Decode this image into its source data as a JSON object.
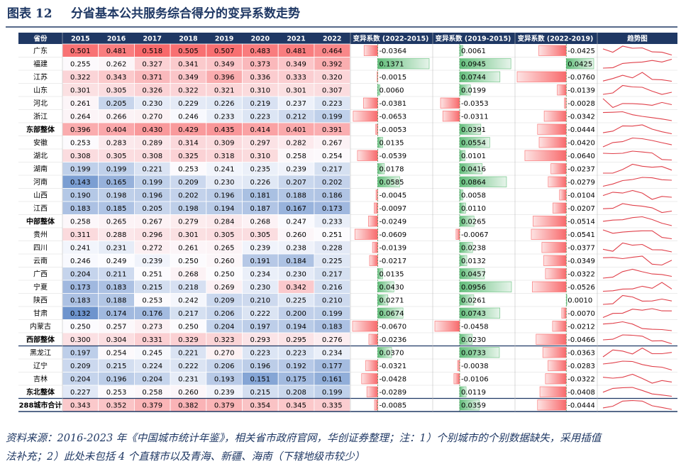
{
  "header": {
    "label": "图表 12",
    "title": "分省基本公共服务综合得分的变异系数走势"
  },
  "table": {
    "columns": [
      "省份",
      "2015",
      "2016",
      "2017",
      "2018",
      "2019",
      "2020",
      "2021",
      "2022",
      "变异系数 (2022-2015)",
      "变异系数 (2019-2015)",
      "变异系数 (2022-2019)",
      "趋势图"
    ],
    "rows": [
      {
        "name": "广东",
        "bold": false,
        "values": [
          "0.501",
          "0.481",
          "0.518",
          "0.505",
          "0.507",
          "0.483",
          "0.481",
          "0.464"
        ],
        "changes": [
          "-0.0364",
          "0.0061",
          "-0.0425"
        ]
      },
      {
        "name": "福建",
        "bold": false,
        "values": [
          "0.255",
          "0.262",
          "0.327",
          "0.341",
          "0.349",
          "0.373",
          "0.349",
          "0.392"
        ],
        "changes": [
          "0.1371",
          "0.0945",
          "0.0425"
        ]
      },
      {
        "name": "江苏",
        "bold": false,
        "values": [
          "0.322",
          "0.343",
          "0.371",
          "0.349",
          "0.396",
          "0.336",
          "0.333",
          "0.320"
        ],
        "changes": [
          "-0.0015",
          "0.0744",
          "-0.0760"
        ]
      },
      {
        "name": "山东",
        "bold": false,
        "values": [
          "0.301",
          "0.305",
          "0.326",
          "0.322",
          "0.321",
          "0.310",
          "0.301",
          "0.307"
        ],
        "changes": [
          "0.0060",
          "0.0199",
          "-0.0139"
        ]
      },
      {
        "name": "河北",
        "bold": false,
        "values": [
          "0.261",
          "0.205",
          "0.230",
          "0.229",
          "0.226",
          "0.219",
          "0.237",
          "0.223"
        ],
        "changes": [
          "-0.0381",
          "-0.0353",
          "-0.0028"
        ]
      },
      {
        "name": "浙江",
        "bold": false,
        "values": [
          "0.264",
          "0.266",
          "0.270",
          "0.246",
          "0.233",
          "0.223",
          "0.212",
          "0.199"
        ],
        "changes": [
          "-0.0653",
          "-0.0311",
          "-0.0342"
        ]
      },
      {
        "name": "东部整体",
        "bold": true,
        "values": [
          "0.396",
          "0.404",
          "0.430",
          "0.429",
          "0.435",
          "0.414",
          "0.401",
          "0.391"
        ],
        "changes": [
          "-0.0053",
          "0.0391",
          "-0.0444"
        ]
      },
      {
        "name": "安徽",
        "bold": false,
        "values": [
          "0.253",
          "0.283",
          "0.289",
          "0.314",
          "0.309",
          "0.297",
          "0.282",
          "0.267"
        ],
        "changes": [
          "0.0135",
          "0.0554",
          "-0.0420"
        ]
      },
      {
        "name": "湖北",
        "bold": false,
        "values": [
          "0.308",
          "0.305",
          "0.308",
          "0.325",
          "0.318",
          "0.310",
          "0.258",
          "0.254"
        ],
        "changes": [
          "-0.0539",
          "0.0101",
          "-0.0640"
        ]
      },
      {
        "name": "湖南",
        "bold": false,
        "values": [
          "0.199",
          "0.199",
          "0.221",
          "0.253",
          "0.241",
          "0.235",
          "0.239",
          "0.217"
        ],
        "changes": [
          "0.0178",
          "0.0416",
          "-0.0237"
        ]
      },
      {
        "name": "河南",
        "bold": false,
        "values": [
          "0.143",
          "0.165",
          "0.199",
          "0.209",
          "0.230",
          "0.226",
          "0.207",
          "0.202"
        ],
        "changes": [
          "0.0585",
          "0.0864",
          "-0.0279"
        ]
      },
      {
        "name": "山西",
        "bold": false,
        "values": [
          "0.190",
          "0.198",
          "0.196",
          "0.202",
          "0.196",
          "0.181",
          "0.188",
          "0.186"
        ],
        "changes": [
          "-0.0045",
          "0.0058",
          "-0.0104"
        ]
      },
      {
        "name": "江西",
        "bold": false,
        "values": [
          "0.183",
          "0.185",
          "0.205",
          "0.198",
          "0.194",
          "0.187",
          "0.167",
          "0.173"
        ],
        "changes": [
          "-0.0097",
          "0.0110",
          "-0.0207"
        ]
      },
      {
        "name": "中部整体",
        "bold": true,
        "values": [
          "0.258",
          "0.265",
          "0.267",
          "0.279",
          "0.284",
          "0.268",
          "0.247",
          "0.233"
        ],
        "changes": [
          "-0.0249",
          "0.0265",
          "-0.0514"
        ]
      },
      {
        "name": "贵州",
        "bold": false,
        "values": [
          "0.311",
          "0.288",
          "0.296",
          "0.301",
          "0.305",
          "0.305",
          "0.260",
          "0.251"
        ],
        "changes": [
          "-0.0609",
          "-0.0067",
          "-0.0541"
        ]
      },
      {
        "name": "四川",
        "bold": false,
        "values": [
          "0.241",
          "0.231",
          "0.272",
          "0.261",
          "0.265",
          "0.239",
          "0.238",
          "0.228"
        ],
        "changes": [
          "-0.0139",
          "0.0238",
          "-0.0377"
        ]
      },
      {
        "name": "云南",
        "bold": false,
        "values": [
          "0.246",
          "0.249",
          "0.239",
          "0.250",
          "0.260",
          "0.191",
          "0.184",
          "0.225"
        ],
        "changes": [
          "-0.0217",
          "0.0132",
          "-0.0349"
        ]
      },
      {
        "name": "广西",
        "bold": false,
        "values": [
          "0.204",
          "0.211",
          "0.251",
          "0.268",
          "0.250",
          "0.234",
          "0.230",
          "0.217"
        ],
        "changes": [
          "0.0135",
          "0.0457",
          "-0.0322"
        ]
      },
      {
        "name": "宁夏",
        "bold": false,
        "values": [
          "0.173",
          "0.183",
          "0.215",
          "0.218",
          "0.269",
          "0.230",
          "0.342",
          "0.216"
        ],
        "changes": [
          "0.0430",
          "0.0956",
          "-0.0526"
        ]
      },
      {
        "name": "陕西",
        "bold": false,
        "values": [
          "0.183",
          "0.188",
          "0.253",
          "0.242",
          "0.209",
          "0.210",
          "0.225",
          "0.210"
        ],
        "changes": [
          "0.0271",
          "0.0261",
          "0.0010"
        ]
      },
      {
        "name": "甘肃",
        "bold": false,
        "values": [
          "0.132",
          "0.174",
          "0.176",
          "0.217",
          "0.206",
          "0.222",
          "0.200",
          "0.199"
        ],
        "changes": [
          "0.0674",
          "0.0743",
          "-0.0070"
        ]
      },
      {
        "name": "内蒙古",
        "bold": false,
        "values": [
          "0.250",
          "0.257",
          "0.273",
          "0.250",
          "0.204",
          "0.197",
          "0.194",
          "0.183"
        ],
        "changes": [
          "-0.0670",
          "-0.0458",
          "-0.0212"
        ]
      },
      {
        "name": "西部整体",
        "bold": true,
        "values": [
          "0.300",
          "0.304",
          "0.331",
          "0.329",
          "0.323",
          "0.293",
          "0.295",
          "0.276"
        ],
        "changes": [
          "-0.0236",
          "0.0230",
          "-0.0466"
        ]
      },
      {
        "name": "黑龙江",
        "bold": false,
        "values": [
          "0.197",
          "0.254",
          "0.245",
          "0.221",
          "0.270",
          "0.223",
          "0.223",
          "0.234"
        ],
        "changes": [
          "0.0370",
          "0.0733",
          "-0.0363"
        ]
      },
      {
        "name": "辽宁",
        "bold": false,
        "values": [
          "0.209",
          "0.215",
          "0.224",
          "0.222",
          "0.206",
          "0.196",
          "0.192",
          "0.177"
        ],
        "changes": [
          "-0.0321",
          "-0.0038",
          "-0.0283"
        ]
      },
      {
        "name": "吉林",
        "bold": false,
        "values": [
          "0.204",
          "0.196",
          "0.204",
          "0.231",
          "0.193",
          "0.151",
          "0.175",
          "0.161"
        ],
        "changes": [
          "-0.0428",
          "-0.0106",
          "-0.0322"
        ]
      },
      {
        "name": "东北整体",
        "bold": true,
        "values": [
          "0.227",
          "0.253",
          "0.258",
          "0.260",
          "0.239",
          "0.215",
          "0.208",
          "0.199"
        ],
        "changes": [
          "-0.0289",
          "0.0119",
          "-0.0408"
        ]
      },
      {
        "name": "288城市合计",
        "bold": true,
        "values": [
          "0.343",
          "0.352",
          "0.379",
          "0.382",
          "0.379",
          "0.354",
          "0.345",
          "0.335"
        ],
        "changes": [
          "-0.0085",
          "0.0359",
          "-0.0444"
        ]
      }
    ]
  },
  "footnote": [
    "资料来源：2016-2023 年《中国城市统计年鉴》，相关省市政府官网，华创证券整理；注：1）个别城市的个别数据缺失，采用插值",
    "法补充；2）此处未包括 4 个直辖市以及青海、新疆、海南（下辖地级市较少）"
  ]
}
